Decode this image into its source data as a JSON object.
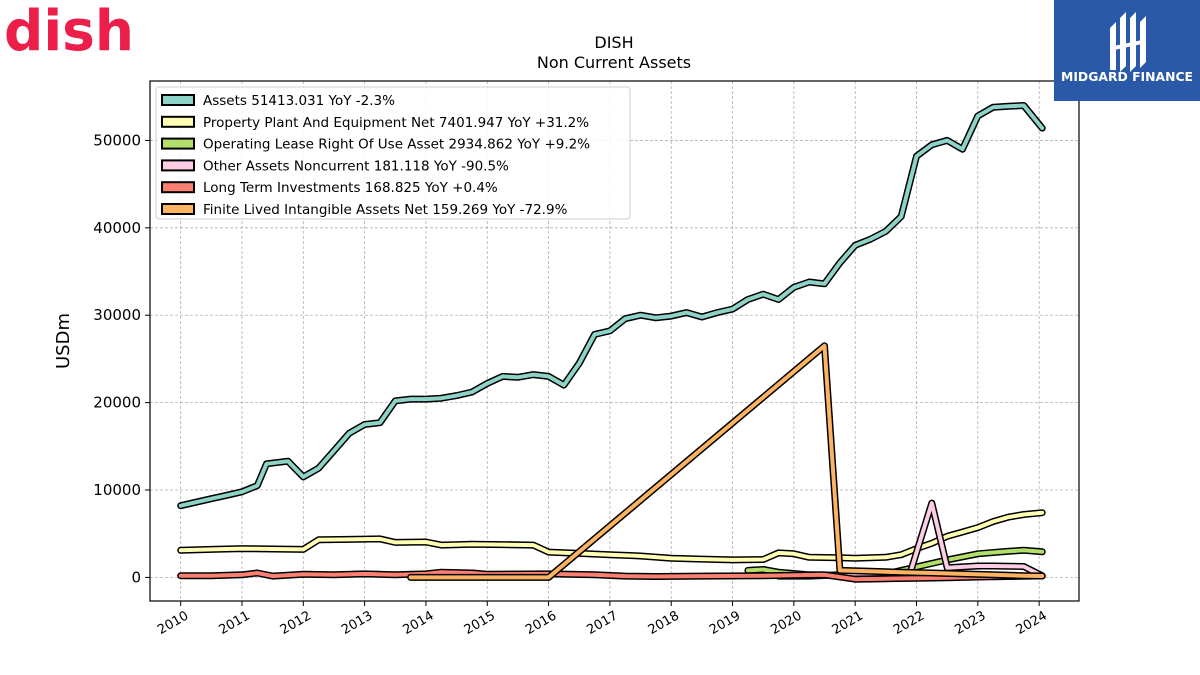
{
  "brand_logo": {
    "text": "dish",
    "color": "#ec1f4b"
  },
  "publisher_logo": {
    "text": "MIDGARD FINANCE",
    "background": "#2a59a8",
    "color": "#ffffff"
  },
  "chart_data": {
    "type": "line",
    "title": "DISH",
    "subtitle": "Non Current  Assets",
    "ylabel": "USDm",
    "xlabel": "",
    "xlim": [
      2009.5,
      2024.65
    ],
    "ylim": [
      -2700,
      56800
    ],
    "x_ticks": [
      "2010",
      "2011",
      "2012",
      "2013",
      "2014",
      "2015",
      "2016",
      "2017",
      "2018",
      "2019",
      "2020",
      "2021",
      "2022",
      "2023",
      "2024"
    ],
    "y_ticks": [
      "0",
      "10000",
      "20000",
      "30000",
      "40000",
      "50000"
    ],
    "grid": true,
    "legend_position": "top-left",
    "series": [
      {
        "name": "Assets  51413.031 YoY -2.3%",
        "color": "#8dd3c7",
        "points": [
          [
            2010,
            8200
          ],
          [
            2010.25,
            8600
          ],
          [
            2010.5,
            9000
          ],
          [
            2010.75,
            9400
          ],
          [
            2011,
            9800
          ],
          [
            2011.25,
            10500
          ],
          [
            2011.4,
            13000
          ],
          [
            2011.75,
            13300
          ],
          [
            2012,
            11500
          ],
          [
            2012.25,
            12500
          ],
          [
            2012.5,
            14500
          ],
          [
            2012.75,
            16500
          ],
          [
            2013,
            17500
          ],
          [
            2013.25,
            17700
          ],
          [
            2013.5,
            20200
          ],
          [
            2013.75,
            20400
          ],
          [
            2014,
            20400
          ],
          [
            2014.25,
            20500
          ],
          [
            2014.5,
            20800
          ],
          [
            2014.75,
            21200
          ],
          [
            2015,
            22200
          ],
          [
            2015.25,
            23000
          ],
          [
            2015.5,
            22900
          ],
          [
            2015.75,
            23200
          ],
          [
            2016,
            23000
          ],
          [
            2016.25,
            22000
          ],
          [
            2016.5,
            24500
          ],
          [
            2016.75,
            27800
          ],
          [
            2017,
            28200
          ],
          [
            2017.25,
            29600
          ],
          [
            2017.5,
            30000
          ],
          [
            2017.75,
            29700
          ],
          [
            2018,
            29900
          ],
          [
            2018.25,
            30300
          ],
          [
            2018.5,
            29800
          ],
          [
            2018.75,
            30300
          ],
          [
            2019,
            30700
          ],
          [
            2019.25,
            31800
          ],
          [
            2019.5,
            32400
          ],
          [
            2019.75,
            31800
          ],
          [
            2020,
            33200
          ],
          [
            2020.25,
            33800
          ],
          [
            2020.5,
            33600
          ],
          [
            2020.75,
            36000
          ],
          [
            2021,
            38000
          ],
          [
            2021.25,
            38700
          ],
          [
            2021.5,
            39600
          ],
          [
            2021.75,
            41300
          ],
          [
            2022,
            48200
          ],
          [
            2022.25,
            49500
          ],
          [
            2022.5,
            50000
          ],
          [
            2022.75,
            49000
          ],
          [
            2023,
            52800
          ],
          [
            2023.25,
            53800
          ],
          [
            2023.5,
            53900
          ],
          [
            2023.75,
            54000
          ],
          [
            2024.05,
            51413
          ]
        ]
      },
      {
        "name": "Property Plant And Equipment Net  7401.947 YoY +31.2%",
        "color": "#ffffb3",
        "points": [
          [
            2010,
            3100
          ],
          [
            2010.5,
            3200
          ],
          [
            2011,
            3300
          ],
          [
            2011.5,
            3250
          ],
          [
            2012,
            3200
          ],
          [
            2012.25,
            4300
          ],
          [
            2012.75,
            4350
          ],
          [
            2013.25,
            4400
          ],
          [
            2013.5,
            4000
          ],
          [
            2014,
            4050
          ],
          [
            2014.25,
            3700
          ],
          [
            2014.75,
            3800
          ],
          [
            2015.25,
            3750
          ],
          [
            2015.75,
            3700
          ],
          [
            2016,
            2900
          ],
          [
            2016.5,
            2750
          ],
          [
            2017,
            2600
          ],
          [
            2017.5,
            2450
          ],
          [
            2018,
            2200
          ],
          [
            2018.5,
            2100
          ],
          [
            2019,
            2000
          ],
          [
            2019.5,
            2050
          ],
          [
            2019.75,
            2800
          ],
          [
            2020,
            2700
          ],
          [
            2020.25,
            2300
          ],
          [
            2020.75,
            2250
          ],
          [
            2021,
            2200
          ],
          [
            2021.5,
            2300
          ],
          [
            2021.75,
            2600
          ],
          [
            2022,
            3300
          ],
          [
            2022.25,
            3900
          ],
          [
            2022.5,
            4700
          ],
          [
            2022.75,
            5200
          ],
          [
            2023,
            5700
          ],
          [
            2023.25,
            6400
          ],
          [
            2023.5,
            6900
          ],
          [
            2023.75,
            7200
          ],
          [
            2024.05,
            7402
          ]
        ]
      },
      {
        "name": "Operating Lease Right Of Use Asset  2934.862 YoY +9.2%",
        "color": "#b3de69",
        "points": [
          [
            2019.25,
            800
          ],
          [
            2019.5,
            900
          ],
          [
            2019.75,
            600
          ],
          [
            2020.25,
            300
          ],
          [
            2021,
            200
          ],
          [
            2021.5,
            400
          ],
          [
            2022,
            1200
          ],
          [
            2022.5,
            2000
          ],
          [
            2023,
            2700
          ],
          [
            2023.5,
            3000
          ],
          [
            2023.75,
            3100
          ],
          [
            2024.05,
            2935
          ]
        ]
      },
      {
        "name": "Other Assets Noncurrent  181.118 YoY -90.5%",
        "color": "#fccde5",
        "points": [
          [
            2019.75,
            150
          ],
          [
            2020.25,
            150
          ],
          [
            2020.75,
            300
          ],
          [
            2021,
            450
          ],
          [
            2021.5,
            500
          ],
          [
            2021.9,
            600
          ],
          [
            2022.25,
            8500
          ],
          [
            2022.5,
            1100
          ],
          [
            2022.75,
            1200
          ],
          [
            2023,
            1300
          ],
          [
            2023.25,
            1300
          ],
          [
            2023.75,
            1250
          ],
          [
            2024.05,
            181
          ]
        ]
      },
      {
        "name": "Long Term Investments  168.825 YoY +0.4%",
        "color": "#fb8072",
        "points": [
          [
            2010,
            200
          ],
          [
            2010.5,
            200
          ],
          [
            2011,
            300
          ],
          [
            2011.25,
            500
          ],
          [
            2011.5,
            150
          ],
          [
            2012,
            350
          ],
          [
            2012.5,
            300
          ],
          [
            2013,
            400
          ],
          [
            2013.5,
            300
          ],
          [
            2014,
            400
          ],
          [
            2014.25,
            600
          ],
          [
            2014.75,
            500
          ],
          [
            2015,
            350
          ],
          [
            2016,
            400
          ],
          [
            2016.75,
            300
          ],
          [
            2017.25,
            150
          ],
          [
            2017.75,
            100
          ],
          [
            2018.5,
            150
          ],
          [
            2019.5,
            200
          ],
          [
            2020.5,
            300
          ],
          [
            2021,
            -200
          ],
          [
            2021.5,
            -150
          ],
          [
            2022,
            -100
          ],
          [
            2022.5,
            -50
          ],
          [
            2023,
            50
          ],
          [
            2023.5,
            100
          ],
          [
            2024.05,
            169
          ]
        ]
      },
      {
        "name": "Finite Lived Intangible Assets Net  159.269 YoY -72.9%",
        "color": "#fdb462",
        "points": [
          [
            2013.75,
            0
          ],
          [
            2015.25,
            0
          ],
          [
            2016,
            0
          ],
          [
            2020.5,
            26500
          ],
          [
            2020.75,
            800
          ],
          [
            2021.25,
            700
          ],
          [
            2021.75,
            600
          ],
          [
            2022.25,
            500
          ],
          [
            2022.75,
            400
          ],
          [
            2023.25,
            300
          ],
          [
            2023.75,
            200
          ],
          [
            2024.05,
            159
          ]
        ]
      }
    ]
  }
}
